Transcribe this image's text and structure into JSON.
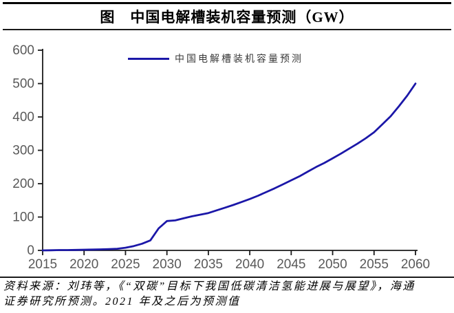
{
  "title": "图　中国电解槽装机容量预测（GW）",
  "legend": {
    "label": "中国电解槽装机容量预测"
  },
  "footer": {
    "line1": "资料来源：刘玮等，《“双碳”目标下我国低碳清洁氢能进展与展望》，海通",
    "line2": "证券研究所预测。2021 年及之后为预测值"
  },
  "colors": {
    "line": "#1b17a8",
    "axis": "#1a1a1a",
    "tick_label": "#595959",
    "title_text": "#000000"
  },
  "chart_data": {
    "type": "line",
    "title": "图　中国电解槽装机容量预测（GW）",
    "xlabel": "",
    "ylabel": "",
    "unit": "GW",
    "xlim": [
      2015,
      2060
    ],
    "ylim": [
      0,
      600
    ],
    "xticks": [
      2015,
      2020,
      2025,
      2030,
      2035,
      2040,
      2045,
      2050,
      2055,
      2060
    ],
    "yticks": [
      0,
      100,
      200,
      300,
      400,
      500,
      600
    ],
    "grid": false,
    "legend_position": "top-center",
    "series": [
      {
        "name": "中国电解槽装机容量预测",
        "x": [
          2015,
          2016,
          2017,
          2018,
          2019,
          2020,
          2021,
          2022,
          2023,
          2024,
          2025,
          2026,
          2027,
          2028,
          2029,
          2030,
          2031,
          2032,
          2033,
          2034,
          2035,
          2036,
          2037,
          2038,
          2039,
          2040,
          2041,
          2042,
          2043,
          2044,
          2045,
          2046,
          2047,
          2048,
          2049,
          2050,
          2051,
          2052,
          2053,
          2054,
          2055,
          2056,
          2057,
          2058,
          2059,
          2060
        ],
        "values": [
          0,
          0.5,
          1,
          1,
          1.5,
          2,
          2.5,
          3,
          4,
          5,
          8,
          13,
          20,
          30,
          66,
          88,
          90,
          96,
          102,
          107,
          112,
          120,
          128,
          136,
          145,
          154,
          164,
          175,
          186,
          198,
          210,
          222,
          236,
          250,
          262,
          276,
          290,
          305,
          320,
          336,
          354,
          378,
          402,
          432,
          464,
          500
        ]
      }
    ]
  }
}
